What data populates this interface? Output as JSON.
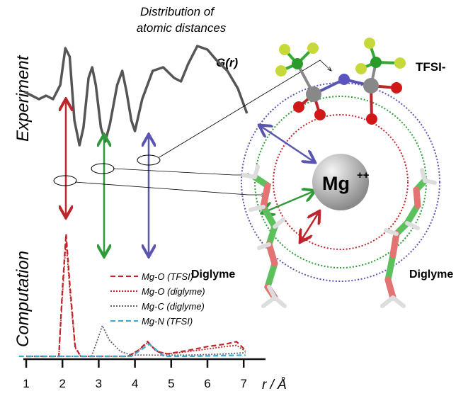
{
  "title": "Distribution of atomic distances",
  "title_line1": "Distribution of",
  "title_line2": "atomic distances",
  "gr_label": "G(r)",
  "experiment_label": "Experiment",
  "computation_label": "Computation",
  "tfsi_label": "TFSI-",
  "mg_label": "Mg",
  "mg_charge": "++",
  "diglyme_left": "Diglyme",
  "diglyme_right": "Diglyme",
  "colors": {
    "red": "#c0242b",
    "green": "#2f9a3a",
    "blue": "#5a55b0",
    "cyan": "#35a9d8",
    "gray": "#555555"
  },
  "chart_data": {
    "type": "line",
    "xlabel": "r / Å",
    "xlim": [
      1,
      7
    ],
    "xticks": [
      "1",
      "2",
      "3",
      "4",
      "5",
      "6",
      "7"
    ],
    "experiment": {
      "name": "G(r)",
      "r": [
        0.96,
        1.16,
        1.35,
        1.55,
        1.74,
        1.94,
        2.08,
        2.2,
        2.33,
        2.47,
        2.58,
        2.72,
        2.82,
        2.92,
        3.06,
        3.18,
        3.31,
        3.51,
        3.65,
        3.77,
        3.9,
        4.0,
        4.2,
        4.49,
        4.78,
        5.08,
        5.27,
        5.47,
        5.72,
        6.0,
        6.25,
        6.55,
        6.84,
        7.09
      ],
      "G": [
        0.9,
        0.85,
        0.8,
        0.85,
        0.8,
        1.0,
        1.52,
        1.4,
        0.5,
        0.15,
        0.4,
        1.1,
        1.25,
        1.0,
        0.4,
        0.2,
        0.45,
        1.0,
        1.2,
        0.9,
        0.5,
        0.35,
        0.8,
        1.2,
        1.25,
        1.1,
        1.05,
        1.3,
        1.55,
        1.5,
        1.35,
        1.2,
        0.95,
        0.6
      ]
    },
    "series": [
      {
        "name": "Mg-O (TFSI)",
        "style": "dashed",
        "color": "#c0242b",
        "r": [
          1,
          1.9,
          2.0,
          2.1,
          2.2,
          2.35,
          2.5,
          3.8,
          4.1,
          4.35,
          4.6,
          4.9,
          5.5,
          6.0,
          6.5,
          6.8,
          7.05
        ],
        "g": [
          0,
          0,
          0.55,
          1.0,
          0.6,
          0.08,
          0,
          0,
          0.05,
          0.12,
          0.04,
          0.02,
          0.05,
          0.08,
          0.1,
          0.12,
          0.05
        ]
      },
      {
        "name": "Mg-O (diglyme)",
        "style": "dotted",
        "color": "#c0242b",
        "r": [
          1,
          1.9,
          2.0,
          2.1,
          2.2,
          2.35,
          2.5,
          3.8,
          4.1,
          4.35,
          4.6,
          4.9,
          5.5,
          6.0,
          6.5,
          6.8,
          7.05
        ],
        "g": [
          0,
          0,
          0.5,
          0.95,
          0.55,
          0.07,
          0,
          0,
          0.05,
          0.11,
          0.04,
          0.02,
          0.04,
          0.06,
          0.08,
          0.09,
          0.04
        ]
      },
      {
        "name": "Mg-C (diglyme)",
        "style": "dotted",
        "color": "#666666",
        "r": [
          1,
          2.8,
          2.95,
          3.1,
          3.3,
          3.6,
          3.9,
          4.5,
          5.5,
          6.5,
          7.05
        ],
        "g": [
          0,
          0,
          0.12,
          0.25,
          0.13,
          0.04,
          0.01,
          0.01,
          0.01,
          0.02,
          0.03
        ]
      },
      {
        "name": "Mg-N (TFSI)",
        "style": "dashed",
        "color": "#35a9d8",
        "r": [
          0.8,
          3.9,
          4.15,
          4.4,
          4.6,
          4.8,
          5.5,
          7.05
        ],
        "g": [
          0,
          0,
          0.05,
          0.1,
          0.05,
          0,
          0,
          0.01
        ]
      }
    ]
  }
}
